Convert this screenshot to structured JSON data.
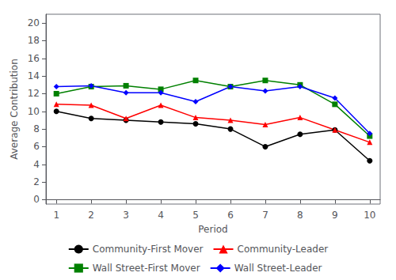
{
  "chart_data": {
    "type": "line",
    "xlabel": "Period",
    "ylabel": "Average Contribution",
    "x": [
      1,
      2,
      3,
      4,
      5,
      6,
      7,
      8,
      9,
      10
    ],
    "series": [
      {
        "name": "Community-First Mover",
        "color": "#000000",
        "marker": "circle",
        "values": [
          10.0,
          9.2,
          9.0,
          8.8,
          8.6,
          8.0,
          6.0,
          7.4,
          7.9,
          4.4
        ]
      },
      {
        "name": "Community-Leader",
        "color": "#ff0000",
        "marker": "triangle",
        "values": [
          10.8,
          10.7,
          9.2,
          10.7,
          9.3,
          9.0,
          8.5,
          9.3,
          7.9,
          6.5
        ]
      },
      {
        "name": "Wall Street-First Mover",
        "color": "#008000",
        "marker": "square",
        "values": [
          12.0,
          12.8,
          12.9,
          12.5,
          13.5,
          12.8,
          13.5,
          13.0,
          10.8,
          7.2
        ]
      },
      {
        "name": "Wall Street-Leader",
        "color": "#0000ff",
        "marker": "diamond",
        "values": [
          12.8,
          12.9,
          12.1,
          12.1,
          11.1,
          12.8,
          12.3,
          12.8,
          11.5,
          7.5
        ]
      }
    ],
    "xlim": [
      0.7,
      10.3
    ],
    "xticks": [
      1,
      2,
      3,
      4,
      5,
      6,
      7,
      8,
      9,
      10
    ],
    "ylim": [
      -0.5,
      21
    ],
    "yticks": [
      0,
      2,
      4,
      6,
      8,
      10,
      12,
      14,
      16,
      18,
      20
    ],
    "grid": false,
    "legend": "bottom"
  }
}
